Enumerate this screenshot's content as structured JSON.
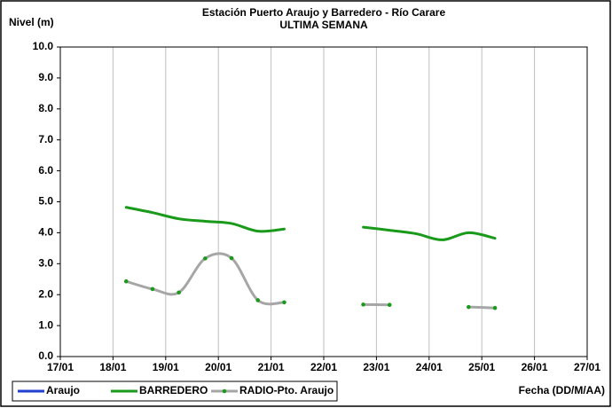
{
  "chart_data": {
    "type": "line",
    "title": "Estación Puerto Araujo y Barredero - Río Carare",
    "subtitle": "ULTIMA SEMANA",
    "y_label": "Nivel (m)",
    "x_label": "Fecha (DD/M/AA)",
    "x": [
      18.25,
      18.75,
      19.25,
      19.75,
      20.25,
      20.75,
      21.25,
      21.75,
      22.25,
      22.75,
      23.25,
      23.75,
      24.25,
      24.75,
      25.25
    ],
    "series": [
      {
        "name": "Araujo",
        "color": "#1f3fcf",
        "values": [
          null,
          null,
          null,
          null,
          null,
          null,
          null,
          null,
          null,
          null,
          null,
          null,
          null,
          null,
          null
        ]
      },
      {
        "name": "BARREDERO",
        "color": "#1a9a1a",
        "values": [
          4.82,
          4.65,
          4.45,
          4.37,
          4.3,
          4.05,
          4.12,
          null,
          null,
          4.18,
          4.08,
          3.97,
          3.77,
          4.0,
          3.82
        ]
      },
      {
        "name": "RADIO-Pto. Araujo",
        "color": "#a6a6a6",
        "marker_color": "#1a9a1a",
        "values": [
          2.43,
          2.18,
          2.07,
          3.17,
          3.18,
          1.82,
          1.75,
          null,
          null,
          1.68,
          1.67,
          null,
          null,
          1.6,
          1.57
        ]
      }
    ],
    "xlim": [
      17,
      27
    ],
    "xticks": [
      {
        "value": 17,
        "label": "17/01"
      },
      {
        "value": 18,
        "label": "18/01"
      },
      {
        "value": 19,
        "label": "19/01"
      },
      {
        "value": 20,
        "label": "20/01"
      },
      {
        "value": 21,
        "label": "21/01"
      },
      {
        "value": 22,
        "label": "22/01"
      },
      {
        "value": 23,
        "label": "23/01"
      },
      {
        "value": 24,
        "label": "24/01"
      },
      {
        "value": 25,
        "label": "25/01"
      },
      {
        "value": 26,
        "label": "26/01"
      },
      {
        "value": 27,
        "label": "27/01"
      }
    ],
    "ylim": [
      0,
      10
    ],
    "yticks": [
      {
        "value": 0,
        "label": "0.0"
      },
      {
        "value": 1,
        "label": "1.0"
      },
      {
        "value": 2,
        "label": "2.0"
      },
      {
        "value": 3,
        "label": "3.0"
      },
      {
        "value": 4,
        "label": "4.0"
      },
      {
        "value": 5,
        "label": "5.0"
      },
      {
        "value": 6,
        "label": "6.0"
      },
      {
        "value": 7,
        "label": "7.0"
      },
      {
        "value": 8,
        "label": "8.0"
      },
      {
        "value": 9,
        "label": "9.0"
      },
      {
        "value": 10,
        "label": "10.0"
      }
    ],
    "grid": "x",
    "smooth": true,
    "legend": "bottom-left"
  }
}
